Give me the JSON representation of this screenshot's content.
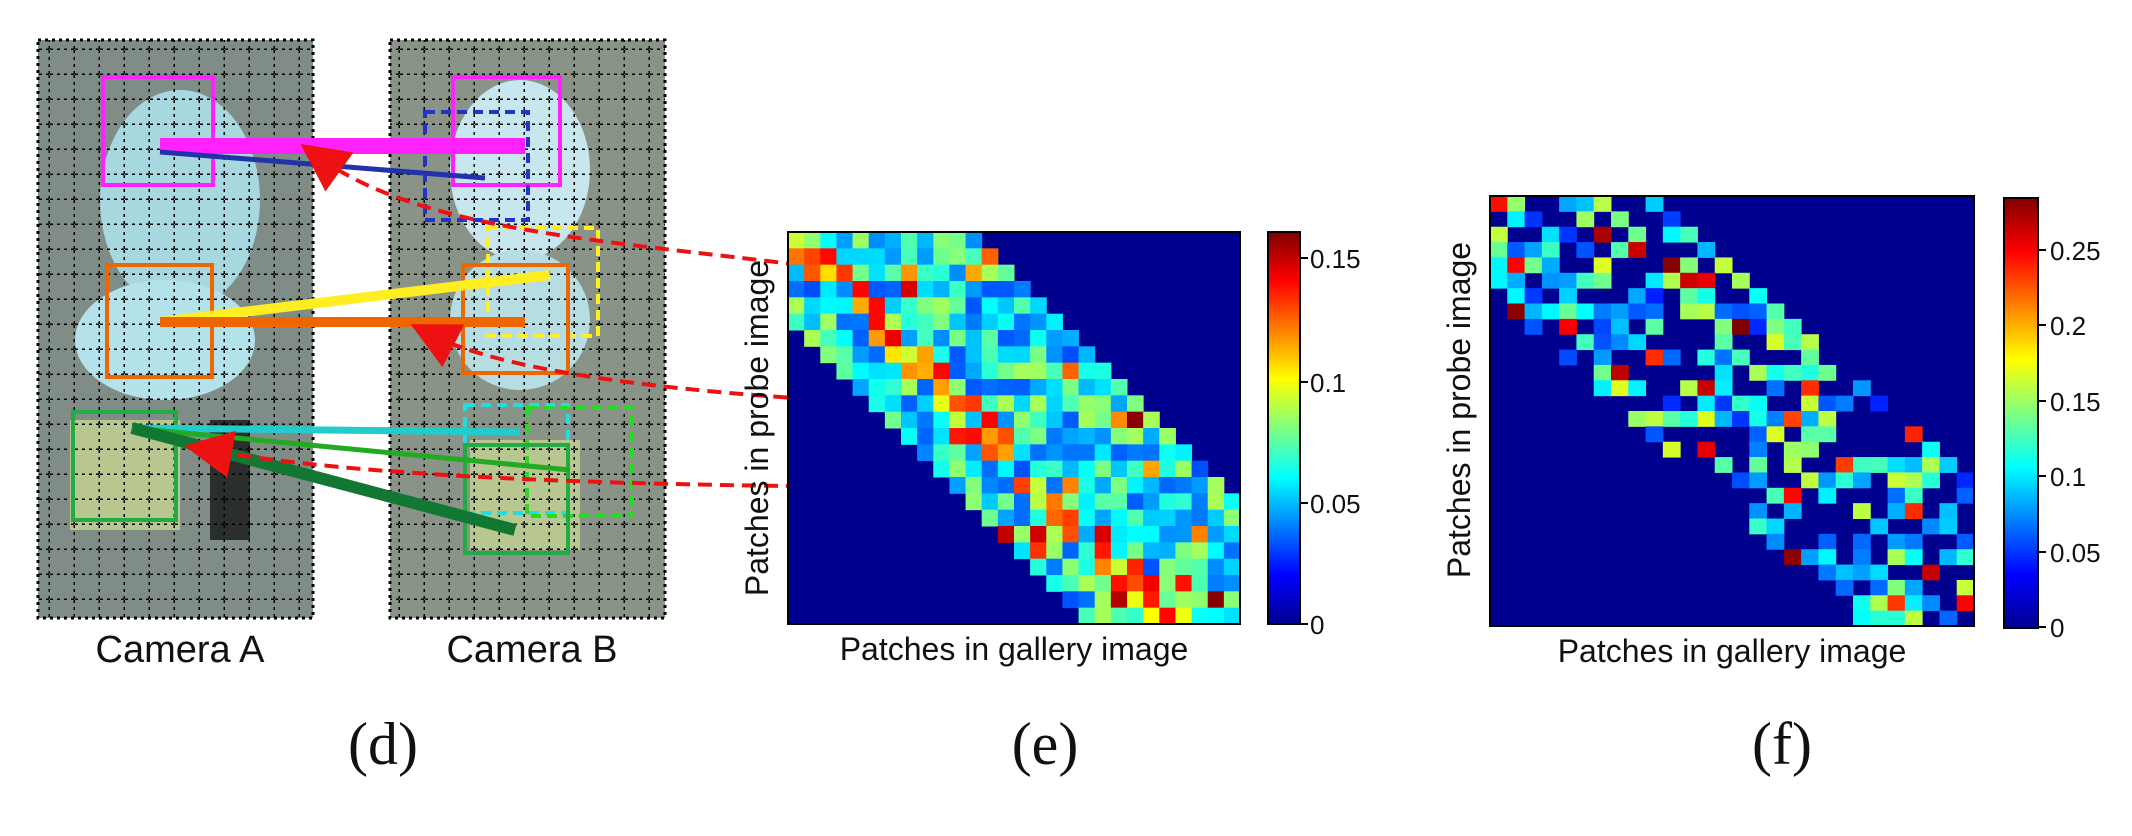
{
  "panel_d": {
    "camera_a_label": "Camera A",
    "camera_b_label": "Camera B",
    "letter": "(d)",
    "correspondence_colors": [
      "#ff22ff",
      "#2233aa",
      "#ffee22",
      "#ee6600",
      "#22cccc",
      "#22aa22",
      "#117733"
    ],
    "arrow_color": "#ee1111"
  },
  "panel_e": {
    "letter": "(e)",
    "colorbar_ticks": [
      "0.15",
      "0.1",
      "0.05",
      "0"
    ]
  },
  "panel_f": {
    "letter": "(f)",
    "colorbar_ticks": [
      "0.25",
      "0.2",
      "0.15",
      "0.1",
      "0.05",
      "0"
    ]
  },
  "chart_data": [
    {
      "type": "heatmap",
      "xlabel": "Patches in gallery image",
      "ylabel": "Patches in probe image",
      "colormap": "jet",
      "clim": [
        0,
        0.165
      ],
      "colorbar_ticks": [
        0,
        0.05,
        0.1,
        0.15
      ],
      "grid_size": [
        24,
        28
      ],
      "band": "diagonal, nonzero where column is between row-5 and row+11"
    },
    {
      "type": "heatmap",
      "xlabel": "Patches in gallery image",
      "ylabel": "Patches in probe image",
      "colormap": "jet",
      "clim": [
        0,
        0.285
      ],
      "colorbar_ticks": [
        0,
        0.05,
        0.1,
        0.15,
        0.2,
        0.25
      ],
      "grid_size": [
        28,
        28
      ],
      "band": "diagonal, sparse, nonzero where column is between row-6 and row+9"
    }
  ]
}
